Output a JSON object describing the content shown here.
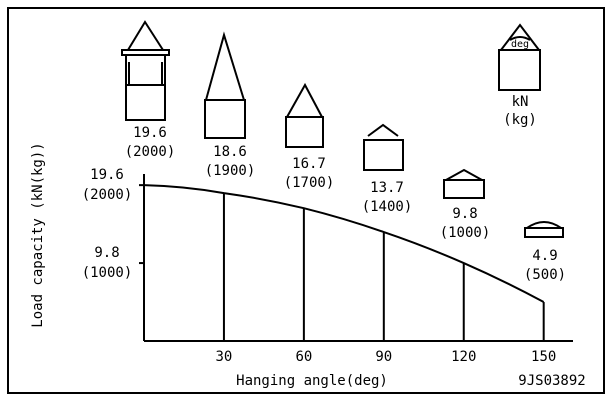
{
  "chart_data": {
    "type": "line",
    "x": [
      0,
      30,
      60,
      90,
      120,
      150
    ],
    "values": [
      19.6,
      18.6,
      16.7,
      13.7,
      9.8,
      4.9
    ],
    "kg_labels": [
      "(2000)",
      "(1900)",
      "(1700)",
      "(1400)",
      "(1000)",
      "(500)"
    ],
    "xlim": [
      0,
      161
    ],
    "ylim": [
      0,
      21
    ],
    "xticks": [
      30,
      60,
      90,
      120,
      150
    ],
    "yticks": [
      19.6,
      9.8
    ],
    "ytick_kg_labels": [
      "(2000)",
      "(1000)"
    ],
    "xlabel": "Hanging angle(deg)",
    "ylabel": "Load capacity (kN(kg))",
    "legend_units": [
      "kN",
      "(kg)"
    ],
    "legend_icon_label": "deg",
    "code": "9JS03892",
    "color": "#000000"
  }
}
